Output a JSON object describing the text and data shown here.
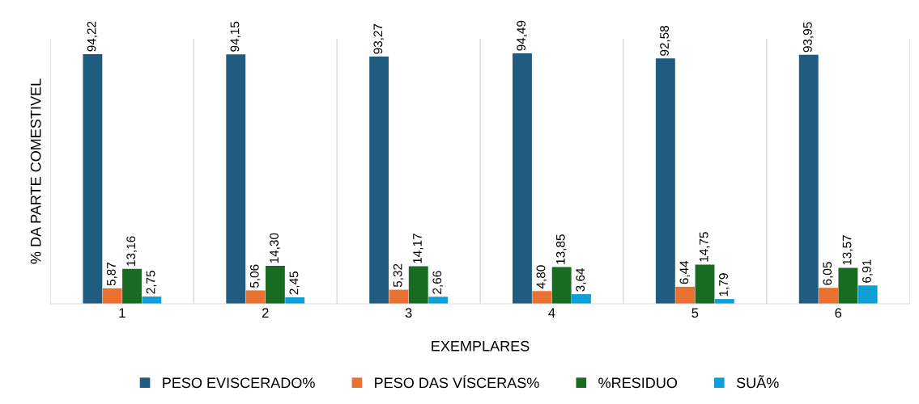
{
  "chart_data": {
    "type": "bar",
    "xlabel": "EXEMPLARES",
    "ylabel": "% DA PARTE COMESTIVEL",
    "categories": [
      "1",
      "2",
      "3",
      "4",
      "5",
      "6"
    ],
    "series": [
      {
        "name": "PESO EVISCERADO%",
        "color": "#1f5c80",
        "values": [
          94.22,
          94.15,
          93.27,
          94.49,
          92.58,
          93.95
        ],
        "value_labels": [
          "94,22",
          "94,15",
          "93,27",
          "94,49",
          "92,58",
          "93,95"
        ]
      },
      {
        "name": "PESO DAS VÍSCERAS%",
        "color": "#e97132",
        "values": [
          5.87,
          5.06,
          5.32,
          4.8,
          6.44,
          6.05
        ],
        "value_labels": [
          "5,87",
          "5,06",
          "5,32",
          "4,80",
          "6,44",
          "6,05"
        ]
      },
      {
        "name": "%RESIDUO",
        "color": "#196b24",
        "values": [
          13.16,
          14.3,
          14.17,
          13.85,
          14.75,
          13.57
        ],
        "value_labels": [
          "13,16",
          "14,30",
          "14,17",
          "13,85",
          "14,75",
          "13,57"
        ]
      },
      {
        "name": "SUÃ%",
        "color": "#0f9ed5",
        "values": [
          2.75,
          2.45,
          2.66,
          3.64,
          1.79,
          6.91
        ],
        "value_labels": [
          "2,75",
          "2,45",
          "2,66",
          "3,64",
          "1,79",
          "6,91"
        ]
      }
    ],
    "ylim": [
      0,
      100
    ],
    "grid": "x",
    "legend": "bottom",
    "tick_labels": "x"
  }
}
